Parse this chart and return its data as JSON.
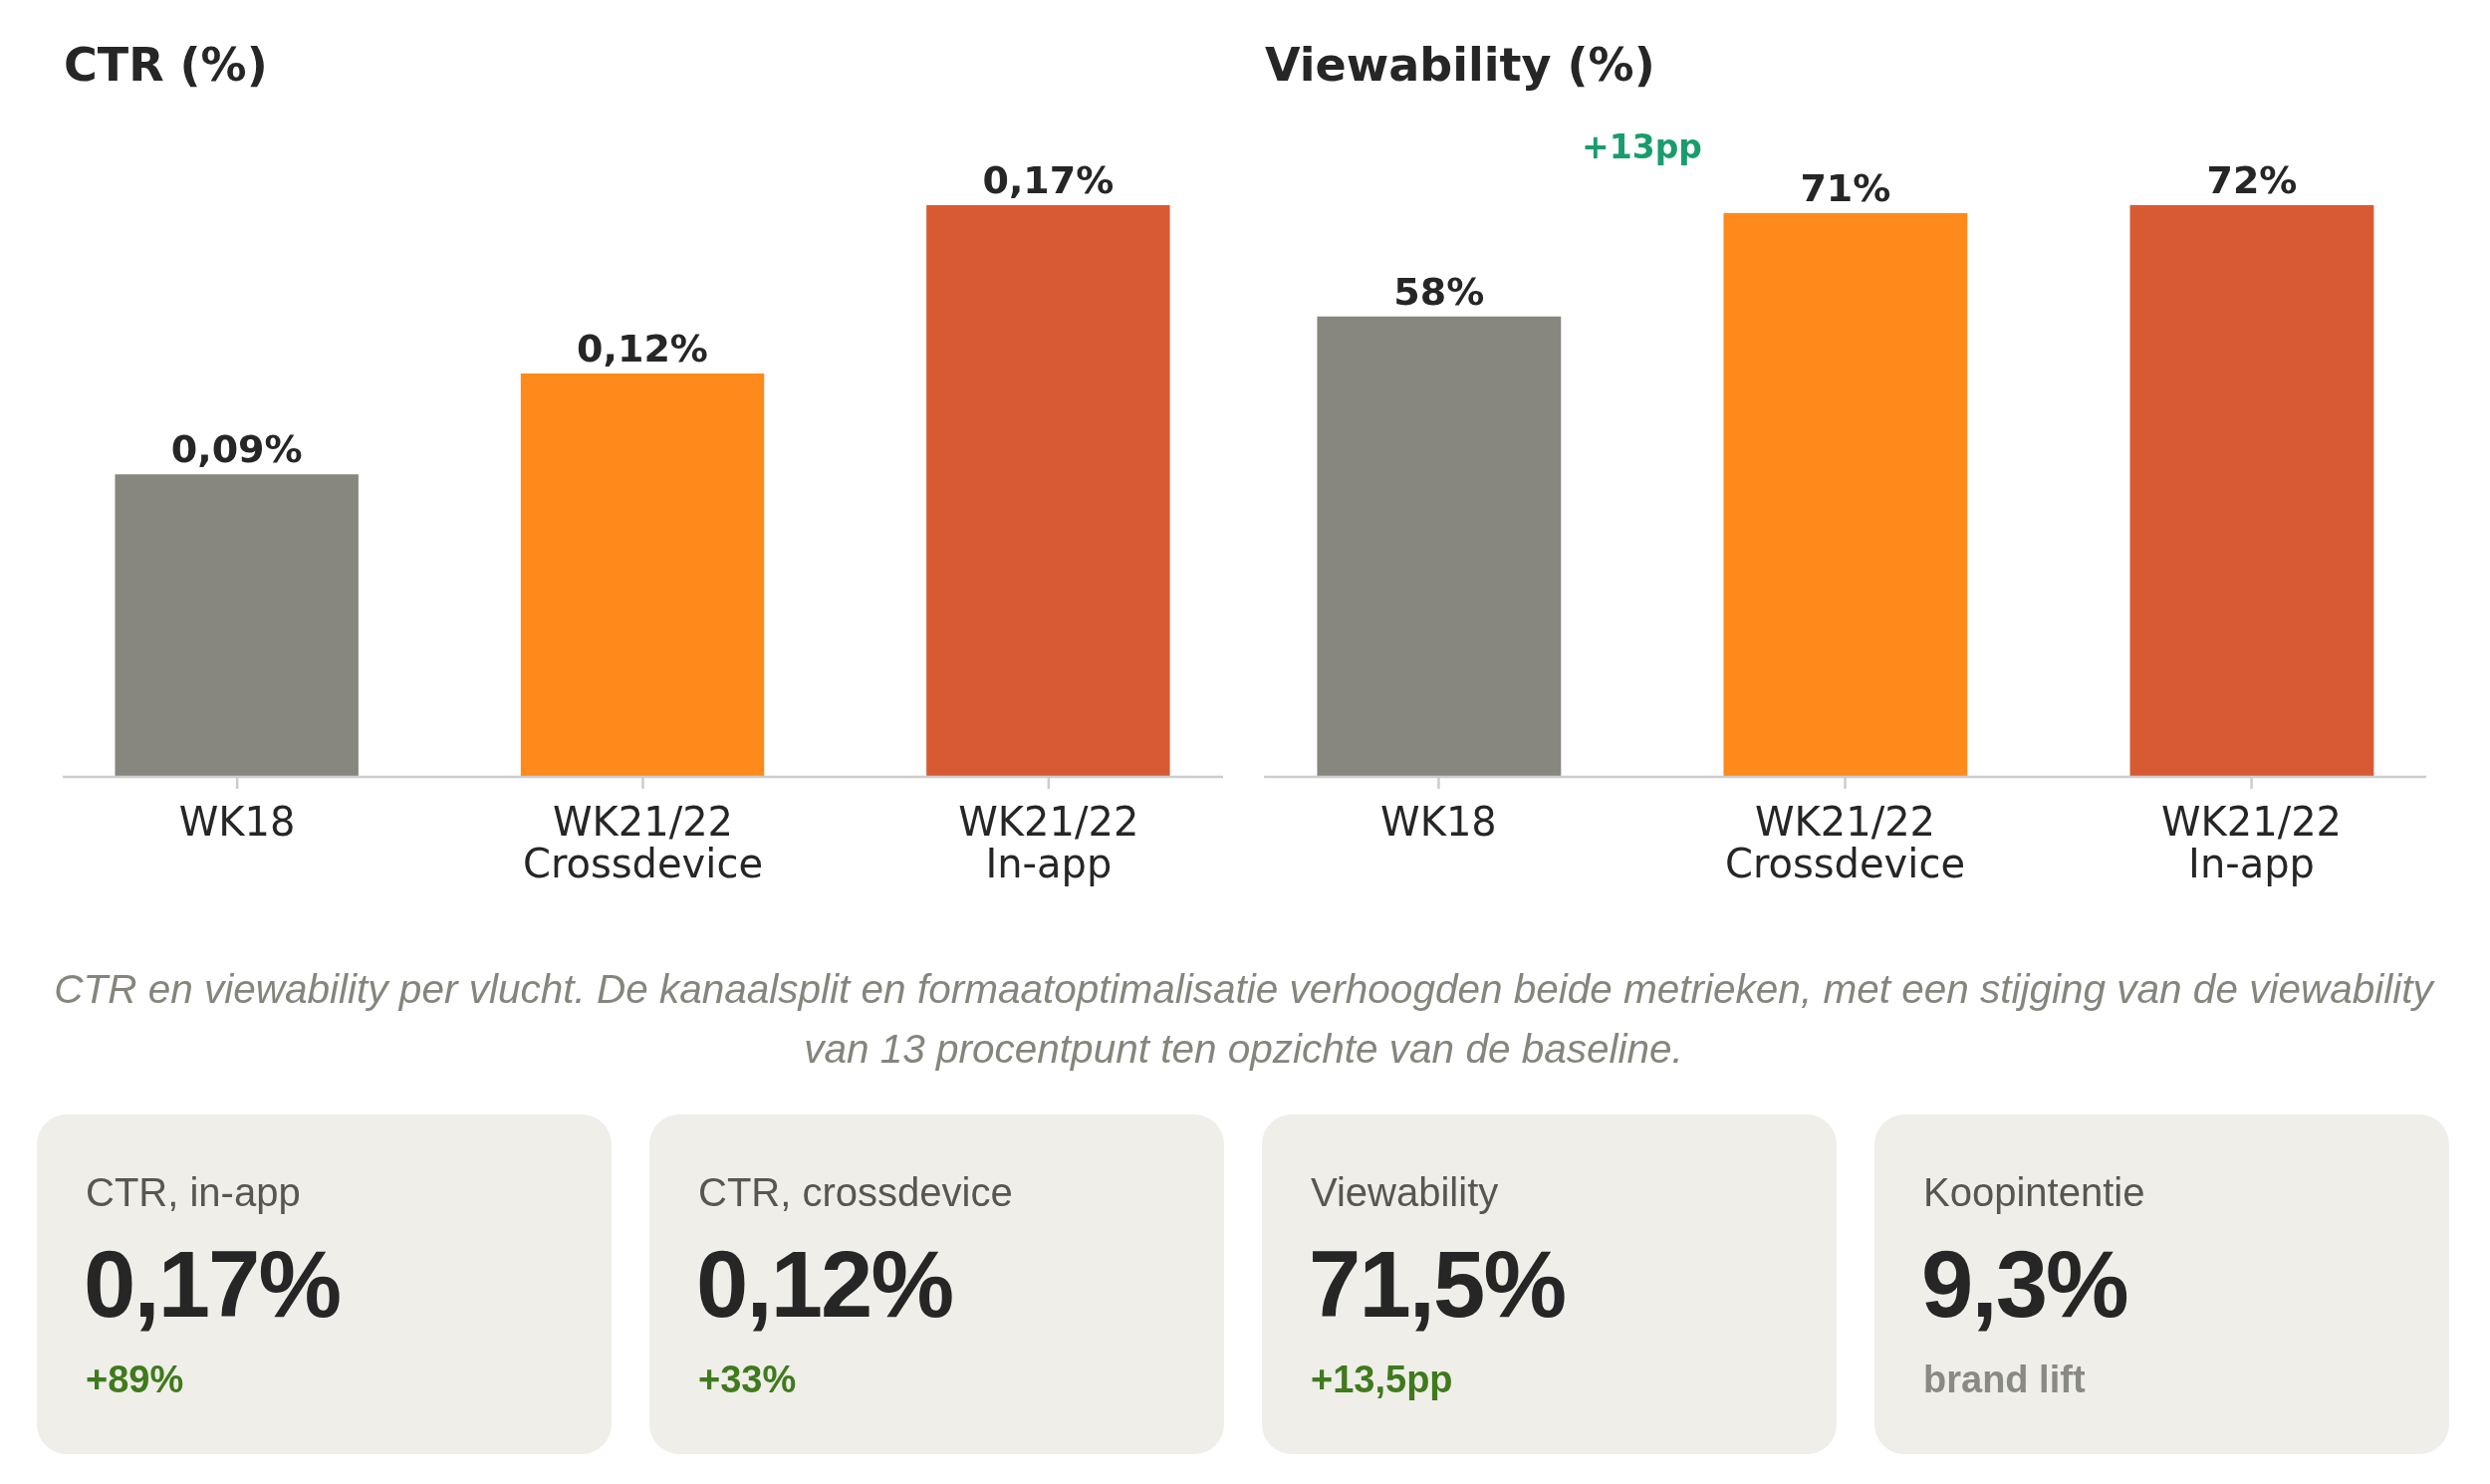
{
  "chart_data": [
    {
      "type": "bar",
      "title": "CTR (%)",
      "categories": [
        "WK18",
        "WK21/22\nCrossdevice",
        "WK21/22\nIn-app"
      ],
      "values": [
        0.09,
        0.12,
        0.17
      ],
      "colors": [
        "#878780",
        "#fd8a1a",
        "#d75a32"
      ],
      "value_labels": [
        "0,09%",
        "0,12%",
        "0,17%"
      ],
      "tick_labels": "x"
    },
    {
      "type": "bar",
      "title": "Viewability (%)",
      "categories": [
        "WK18",
        "WK21/22\nCrossdevice",
        "WK21/22\nIn-app"
      ],
      "values": [
        58,
        71,
        72
      ],
      "colors": [
        "#878780",
        "#fd8a1a",
        "#d75a32"
      ],
      "value_labels": [
        "58%",
        "71%",
        "72%"
      ],
      "tick_labels": "x",
      "annotations": [
        "+13pp"
      ]
    },
    {
      "type": "other",
      "categories": [
        "CTR, in-app",
        "CTR, crossdevice",
        "Viewability",
        "Koopintentie"
      ],
      "value_labels": [
        "0,17%",
        "0,12%",
        "71,5%",
        "9,3%"
      ],
      "annotations": [
        "CTR en viewability per vlucht. De kanaalsplit en formaatoptimalisatie verhoogden beide metrieken, met een stijging van de viewability van 13 procentpunt ten opzichte van de baseline.",
        {
          "text": "+89%",
          "x": "CTR, in-app"
        },
        {
          "text": "+33%",
          "x": "CTR, crossdevice"
        },
        {
          "text": "+13,5pp",
          "x": "Viewability"
        },
        {
          "text": "brand lift",
          "x": "Koopintentie"
        }
      ]
    }
  ]
}
